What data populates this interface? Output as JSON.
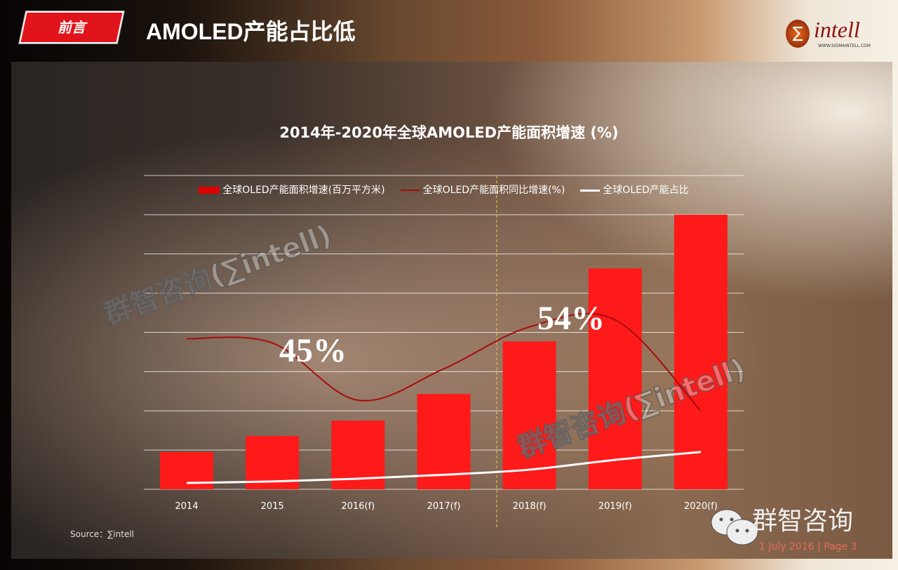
{
  "header": {
    "tag": "前言",
    "title": "AMOLED产能占比低",
    "logo_text": "intell",
    "logo_url": "WWW.SIGMAINTELL.COM"
  },
  "chart_data": {
    "type": "bar",
    "title": "2014年-2020年全球AMOLED产能面积增速 (%)",
    "categories": [
      "2014",
      "2015",
      "2016(f)",
      "2017(f)",
      "2018(f)",
      "2019(f)",
      "2020(f)"
    ],
    "ylim": [
      0,
      8
    ],
    "grid": true,
    "legend": "top",
    "y_tick_labels_shown": false,
    "series": [
      {
        "name": "全球OLED产能面积增速(百万平方米)",
        "type": "bar",
        "color": "#ff1a1a",
        "values": [
          0.95,
          1.36,
          1.75,
          2.43,
          3.77,
          5.63,
          7.0
        ]
      },
      {
        "name": "全球OLED产能面积同比增速(%)",
        "type": "line",
        "color": "#a80c0c",
        "values": [
          3.84,
          3.73,
          2.27,
          3.07,
          4.14,
          4.32,
          2.0
        ]
      },
      {
        "name": "全球OLED产能占比",
        "type": "line",
        "color": "#ffffff",
        "values": [
          0.16,
          0.2,
          0.27,
          0.37,
          0.5,
          0.75,
          0.95
        ]
      }
    ],
    "annotations": [
      "45%",
      "54%"
    ]
  },
  "watermark": "群智咨询(∑intell)",
  "footer": {
    "source": "Source：∑intell",
    "brand": "群智咨询",
    "date_page": "1 July 2016 | Page 3"
  }
}
